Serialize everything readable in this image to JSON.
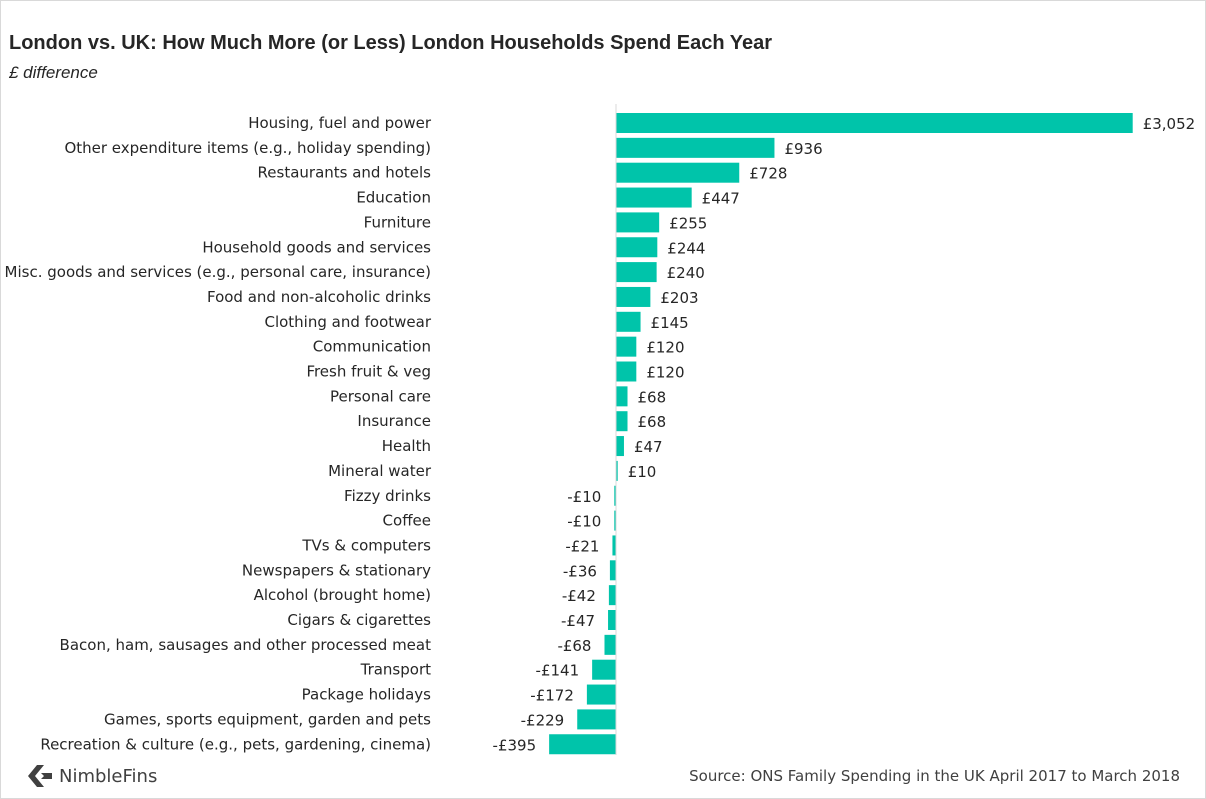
{
  "colors": {
    "bar": "#00c4aa",
    "axis": "#d9d9d9",
    "text": "#262626"
  },
  "brand": {
    "name": "NimbleFins",
    "icon": "arrow-logo-icon"
  },
  "source": "Source: ONS Family Spending in the UK April 2017 to March 2018",
  "chart_data": {
    "type": "bar",
    "orientation": "horizontal",
    "title": "London vs. UK: How Much More (or Less) London Households Spend Each Year",
    "subtitle": "£ difference",
    "categories": [
      "Housing, fuel and power",
      "Other expenditure items (e.g., holiday spending)",
      "Restaurants and hotels",
      "Education",
      "Furniture",
      "Household goods and services",
      "Misc. goods and services (e.g., personal care, insurance)",
      "Food and non-alcoholic drinks",
      "Clothing and footwear",
      "Communication",
      "Fresh fruit & veg",
      "Personal care",
      "Insurance",
      "Health",
      "Mineral water",
      "Fizzy drinks",
      "Coffee",
      "TVs & computers",
      "Newspapers & stationary",
      "Alcohol (brought home)",
      "Cigars & cigarettes",
      "Bacon, ham, sausages and other processed meat",
      "Transport",
      "Package holidays",
      "Games, sports equipment, garden and pets",
      "Recreation & culture (e.g., pets, gardening, cinema)"
    ],
    "values": [
      3052,
      936,
      728,
      447,
      255,
      244,
      240,
      203,
      145,
      120,
      120,
      68,
      68,
      47,
      10,
      -10,
      -10,
      -21,
      -36,
      -42,
      -47,
      -68,
      -141,
      -172,
      -229,
      -395
    ],
    "data_labels": [
      "£3,052",
      "£936",
      "£728",
      "£447",
      "£255",
      "£244",
      "£240",
      "£203",
      "£145",
      "£120",
      "£120",
      "£68",
      "£68",
      "£47",
      "£10",
      "-£10",
      "-£10",
      "-£21",
      "-£36",
      "-£42",
      "-£47",
      "-£68",
      "-£141",
      "-£172",
      "-£229",
      "-£395"
    ],
    "xlim": [
      -400,
      3052
    ],
    "grid": false,
    "legend": "none"
  }
}
